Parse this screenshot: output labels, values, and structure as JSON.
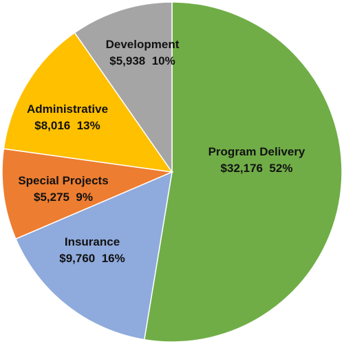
{
  "chart_data": {
    "type": "pie",
    "start_angle_deg": 0,
    "direction": "clockwise",
    "slice_border_color": "#ffffff",
    "slices": [
      {
        "name": "Program Delivery",
        "value": 32176,
        "value_label": "$32,176",
        "percent_label": "52%",
        "color": "#70ad47"
      },
      {
        "name": "Insurance",
        "value": 9760,
        "value_label": "$9,760",
        "percent_label": "16%",
        "color": "#8faadc"
      },
      {
        "name": "Special Projects",
        "value": 5275,
        "value_label": "$5,275",
        "percent_label": "9%",
        "color": "#ed7d31"
      },
      {
        "name": "Administrative",
        "value": 8016,
        "value_label": "$8,016",
        "percent_label": "13%",
        "color": "#ffc000"
      },
      {
        "name": "Development",
        "value": 5938,
        "value_label": "$5,938",
        "percent_label": "10%",
        "color": "#a5a5a5"
      }
    ]
  }
}
